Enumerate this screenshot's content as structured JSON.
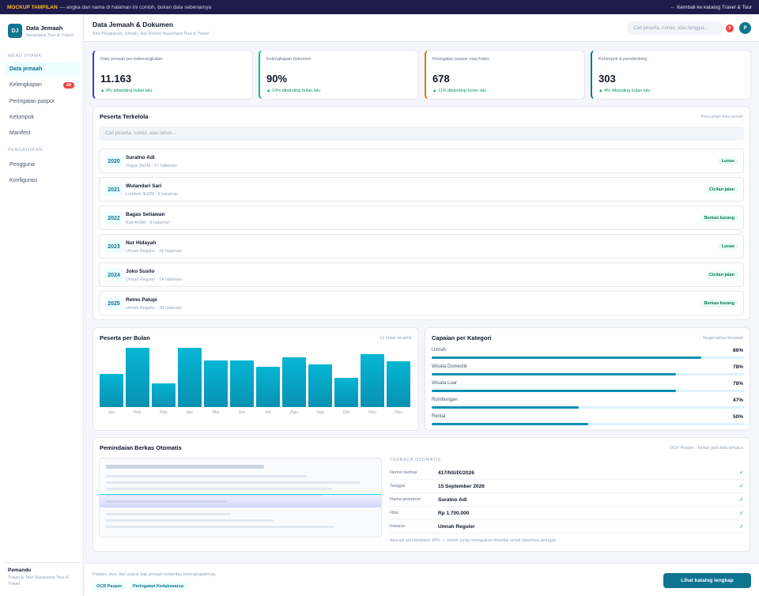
{
  "topbar": {
    "tag": "MOCKUP TAMPILAN",
    "message": "— angka dan nama di halaman ini contoh, bukan data sebenarnya",
    "back_link": "← Kembali ke katalog Travel & Tour"
  },
  "brand": {
    "logo": "DJ",
    "title": "Data Jemaah",
    "subtitle": "Nusantara Tour & Travel"
  },
  "sidebar": {
    "main_label": "MENU UTAMA",
    "settings_label": "PENGATURAN",
    "items": [
      {
        "label": "Data jemaah",
        "active": true
      },
      {
        "label": "Kelengkapan",
        "badge": "49"
      },
      {
        "label": "Peringatan paspor"
      },
      {
        "label": "Kelompok"
      },
      {
        "label": "Manifest"
      }
    ],
    "settings_items": [
      {
        "label": "Pengguna"
      },
      {
        "label": "Konfigurasi"
      }
    ],
    "footer_title": "Pemandu",
    "footer_sub": "Travel & Tour Nusantara Tour & Travel"
  },
  "header": {
    "title": "Data Jemaah & Dokumen",
    "subtitle": "Biro Perjalanan, Umrah, dan Rental Nusantara Tour & Travel",
    "search_placeholder": "Cari peserta, nomor, atau tanggal...",
    "notif_count": "8",
    "avatar": "P"
  },
  "stats": [
    {
      "label": "Data jemaah per keberangkatan",
      "value": "11.163",
      "change": "▲ 8% dibanding bulan lalu",
      "color": "#4338ca"
    },
    {
      "label": "Kelengkapan dokumen",
      "value": "90%",
      "change": "▲ 14% dibanding bulan lalu",
      "color": "#10b981"
    },
    {
      "label": "Peringatan paspor mau habis",
      "value": "678",
      "change": "▲ 11% dibanding bulan lalu",
      "color": "#d97706"
    },
    {
      "label": "Kelompok & pembimbing",
      "value": "303",
      "change": "▲ 4% dibanding bulan lalu",
      "color": "#0e7490"
    }
  ],
  "peserta": {
    "title": "Peserta Terkelola",
    "note": "Pencarian teks penuh",
    "search_placeholder": "Cari peserta, nomor, atau tahun...",
    "rows": [
      {
        "year": "2020",
        "name": "Suratno Adi",
        "sub": "Yogya 3H2M · 17 halaman",
        "status": "Lunas"
      },
      {
        "year": "2021",
        "name": "Wulandari Sari",
        "sub": "Lombok 3H2M · 6 halaman",
        "status": "Cicilan jalan"
      },
      {
        "year": "2022",
        "name": "Bagas Setiawan",
        "sub": "Bali 4H3M · 9 halaman",
        "status": "Berkas kurang"
      },
      {
        "year": "2023",
        "name": "Nur Hidayah",
        "sub": "Umrah Reguler · 26 halaman",
        "status": "Lunas"
      },
      {
        "year": "2024",
        "name": "Joko Susilo",
        "sub": "Umrah Reguler · 14 halaman",
        "status": "Cicilan jalan"
      },
      {
        "year": "2025",
        "name": "Retno Palupi",
        "sub": "Umrah Reguler · 39 halaman",
        "status": "Berkas kurang"
      }
    ]
  },
  "monthly": {
    "title": "Peserta per Bulan",
    "note": "12 bulan terakhir",
    "chart_data": {
      "type": "bar",
      "categories": [
        "Jan",
        "Feb",
        "Mar",
        "Apr",
        "Mei",
        "Jun",
        "Jul",
        "Agu",
        "Sep",
        "Okt",
        "Nov",
        "Des"
      ],
      "values": [
        56,
        100,
        40,
        100,
        79,
        79,
        68,
        84,
        72,
        49,
        90,
        78
      ],
      "ylim": [
        0,
        100
      ]
    }
  },
  "categories": {
    "title": "Capaian per Kategori",
    "note": "Target tahun berjalan",
    "items": [
      {
        "label": "Umrah",
        "value": "86%",
        "pct": 86
      },
      {
        "label": "Wisata Domestik",
        "value": "78%",
        "pct": 78
      },
      {
        "label": "Wisata Luar",
        "value": "78%",
        "pct": 78
      },
      {
        "label": "Rombongan",
        "value": "47%",
        "pct": 47
      },
      {
        "label": "Rental",
        "value": "50%",
        "pct": 50
      }
    ]
  },
  "scan": {
    "title": "Pemindaian Berkas Otomatis",
    "note": "OCR Paspor · kertas jadi data terbaca",
    "head": "TERBACA OTOMATIS",
    "fields": [
      {
        "key": "Nomor berkas",
        "value": "417/NS/IX/2026"
      },
      {
        "key": "Tanggal",
        "value": "15 September 2026"
      },
      {
        "key": "Nama pemohon",
        "value": "Suratno Adi"
      },
      {
        "key": "Nilai",
        "value": "Rp 1.700.000"
      },
      {
        "key": "Instansi",
        "value": "Umrah Reguler"
      }
    ],
    "accuracy": "Akurasi pembindaian 98% — kolom yang meragukan ditandai untuk diperiksa petugas."
  },
  "footer": {
    "text": "Paspor, visa, dan syarat tiap jemaah terpantau kelengkapannya.",
    "chips": [
      "OCR Paspor",
      "Peringatan Kedaluwarsa"
    ],
    "cta": "Lihat katalog lengkap"
  }
}
